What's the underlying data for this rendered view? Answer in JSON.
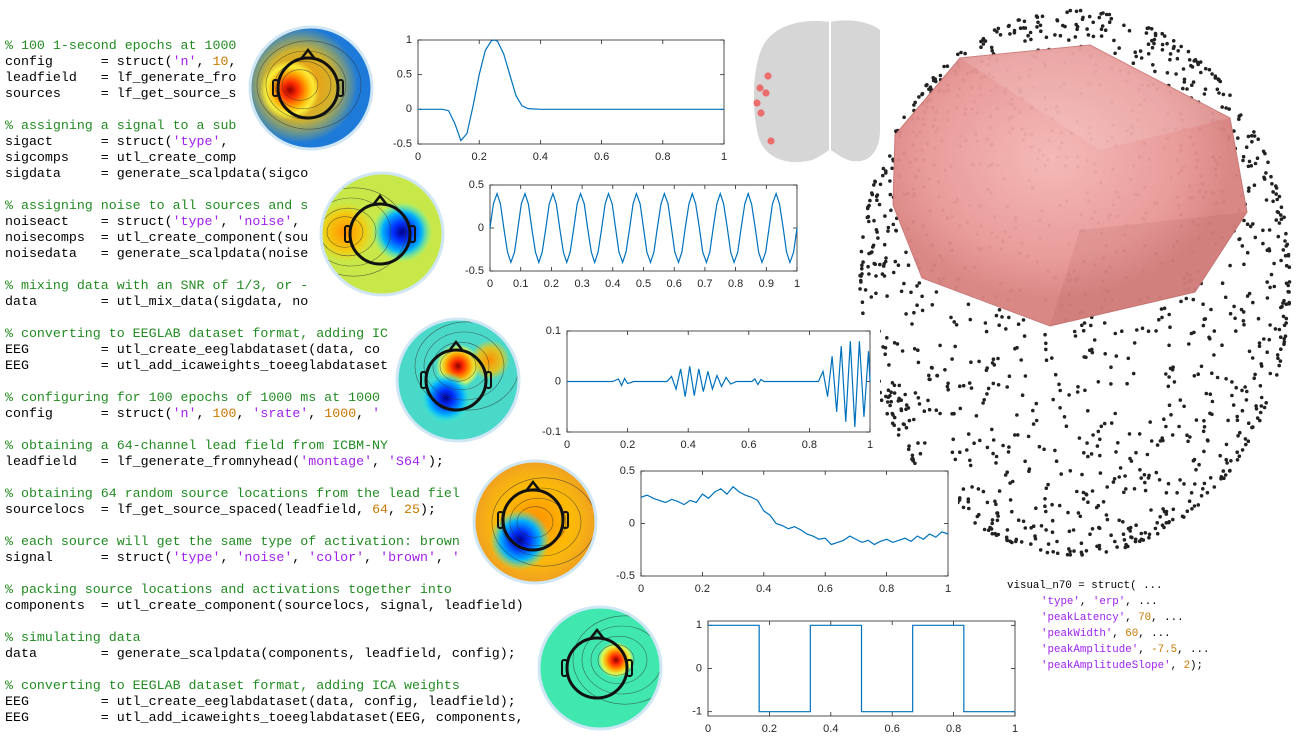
{
  "code": [
    [
      {
        "text": "% 100 1-second epochs at 1000",
        "color": "#228b22"
      }
    ],
    [
      {
        "text": "config      = struct(",
        "color": "#000000"
      },
      {
        "text": "'n'",
        "color": "#a020f0"
      },
      {
        "text": ", ",
        "color": "#000000"
      },
      {
        "text": "10",
        "color": "#c87800"
      },
      {
        "text": ",",
        "color": "#000000"
      }
    ],
    [
      {
        "text": "leadfield   = lf_generate_fro",
        "color": "#000000"
      }
    ],
    [
      {
        "text": "sources     = lf_get_source_s",
        "color": "#000000"
      }
    ],
    [],
    [
      {
        "text": "% assigning a signal to a sub",
        "color": "#228b22"
      }
    ],
    [
      {
        "text": "sigact      = struct(",
        "color": "#000000"
      },
      {
        "text": "'type'",
        "color": "#a020f0"
      },
      {
        "text": ",",
        "color": "#000000"
      }
    ],
    [
      {
        "text": "sigcomps    = utl_create_comp",
        "color": "#000000"
      }
    ],
    [
      {
        "text": "sigdata     = generate_scalpdata(sigco",
        "color": "#000000"
      }
    ],
    [],
    [
      {
        "text": "% assigning noise to all sources and s",
        "color": "#228b22"
      }
    ],
    [
      {
        "text": "noiseact    = struct(",
        "color": "#000000"
      },
      {
        "text": "'type'",
        "color": "#a020f0"
      },
      {
        "text": ", ",
        "color": "#000000"
      },
      {
        "text": "'noise'",
        "color": "#a020f0"
      },
      {
        "text": ",",
        "color": "#000000"
      }
    ],
    [
      {
        "text": "noisecomps  = utl_create_component(sou",
        "color": "#000000"
      }
    ],
    [
      {
        "text": "noisedata   = generate_scalpdata(noise",
        "color": "#000000"
      }
    ],
    [],
    [
      {
        "text": "% mixing data with an SNR of 1/3, or -",
        "color": "#228b22"
      }
    ],
    [
      {
        "text": "data        = utl_mix_data(sigdata, no",
        "color": "#000000"
      }
    ],
    [],
    [
      {
        "text": "% converting to EEGLAB dataset format, adding IC",
        "color": "#228b22"
      }
    ],
    [
      {
        "text": "EEG         = utl_create_eeglabdataset(data, co",
        "color": "#000000"
      }
    ],
    [
      {
        "text": "EEG         = utl_add_icaweights_toeeglabdataset",
        "color": "#000000"
      }
    ],
    [],
    [
      {
        "text": "% configuring for 100 epochs of 1000 ms at 1000",
        "color": "#228b22"
      }
    ],
    [
      {
        "text": "config      = struct(",
        "color": "#000000"
      },
      {
        "text": "'n'",
        "color": "#a020f0"
      },
      {
        "text": ", ",
        "color": "#000000"
      },
      {
        "text": "100",
        "color": "#c87800"
      },
      {
        "text": ", ",
        "color": "#000000"
      },
      {
        "text": "'srate'",
        "color": "#a020f0"
      },
      {
        "text": ", ",
        "color": "#000000"
      },
      {
        "text": "1000",
        "color": "#c87800"
      },
      {
        "text": ", ",
        "color": "#000000"
      },
      {
        "text": "'",
        "color": "#a020f0"
      }
    ],
    [],
    [
      {
        "text": "% obtaining a 64-channel lead field from ICBM-NY",
        "color": "#228b22"
      }
    ],
    [
      {
        "text": "leadfield   = lf_generate_fromnyhead(",
        "color": "#000000"
      },
      {
        "text": "'montage'",
        "color": "#a020f0"
      },
      {
        "text": ", ",
        "color": "#000000"
      },
      {
        "text": "'S64'",
        "color": "#a020f0"
      },
      {
        "text": ");",
        "color": "#000000"
      }
    ],
    [],
    [
      {
        "text": "% obtaining 64 random source locations from the lead fiel",
        "color": "#228b22"
      }
    ],
    [
      {
        "text": "sourcelocs  = lf_get_source_spaced(leadfield, ",
        "color": "#000000"
      },
      {
        "text": "64",
        "color": "#c87800"
      },
      {
        "text": ", ",
        "color": "#000000"
      },
      {
        "text": "25",
        "color": "#c87800"
      },
      {
        "text": ");",
        "color": "#000000"
      }
    ],
    [],
    [
      {
        "text": "% each source will get the same type of activation: brown",
        "color": "#228b22"
      }
    ],
    [
      {
        "text": "signal      = struct(",
        "color": "#000000"
      },
      {
        "text": "'type'",
        "color": "#a020f0"
      },
      {
        "text": ", ",
        "color": "#000000"
      },
      {
        "text": "'noise'",
        "color": "#a020f0"
      },
      {
        "text": ", ",
        "color": "#000000"
      },
      {
        "text": "'color'",
        "color": "#a020f0"
      },
      {
        "text": ", ",
        "color": "#000000"
      },
      {
        "text": "'brown'",
        "color": "#a020f0"
      },
      {
        "text": ", ",
        "color": "#000000"
      },
      {
        "text": "'",
        "color": "#a020f0"
      }
    ],
    [],
    [
      {
        "text": "% packing source locations and activations together into",
        "color": "#228b22"
      }
    ],
    [
      {
        "text": "components  = utl_create_component(sourcelocs, signal, leadfield)",
        "color": "#000000"
      }
    ],
    [],
    [
      {
        "text": "% simulating data",
        "color": "#228b22"
      }
    ],
    [
      {
        "text": "data        = generate_scalpdata(components, leadfield, config);",
        "color": "#000000"
      }
    ],
    [],
    [
      {
        "text": "% converting to EEGLAB dataset format, adding ICA weights",
        "color": "#228b22"
      }
    ],
    [
      {
        "text": "EEG         = utl_create_eeglabdataset(data, config, leadfield);",
        "color": "#000000"
      }
    ],
    [
      {
        "text": "EEG         = utl_add_icaweights_toeeglabdataset(EEG, components,",
        "color": "#000000"
      }
    ]
  ],
  "snippet": [
    [
      {
        "text": "visual_n70 = struct( ...",
        "color": "#000000"
      }
    ],
    [
      {
        "text": "'type'",
        "color": "#a020f0"
      },
      {
        "text": ", ",
        "color": "#000000"
      },
      {
        "text": "'erp'",
        "color": "#a020f0"
      },
      {
        "text": ", ...",
        "color": "#000000"
      }
    ],
    [
      {
        "text": "'peakLatency'",
        "color": "#a020f0"
      },
      {
        "text": ", ",
        "color": "#000000"
      },
      {
        "text": "70",
        "color": "#c87800"
      },
      {
        "text": ", ...",
        "color": "#000000"
      }
    ],
    [
      {
        "text": "'peakWidth'",
        "color": "#a020f0"
      },
      {
        "text": ", ",
        "color": "#000000"
      },
      {
        "text": "60",
        "color": "#c87800"
      },
      {
        "text": ", ...",
        "color": "#000000"
      }
    ],
    [
      {
        "text": "'peakAmplitude'",
        "color": "#a020f0"
      },
      {
        "text": ", ",
        "color": "#000000"
      },
      {
        "text": "-7.5",
        "color": "#c87800"
      },
      {
        "text": ", ...",
        "color": "#000000"
      }
    ],
    [
      {
        "text": "'peakAmplitudeSlope'",
        "color": "#a020f0"
      },
      {
        "text": ", ",
        "color": "#000000"
      },
      {
        "text": "2",
        "color": "#c87800"
      },
      {
        "text": ");",
        "color": "#000000"
      }
    ]
  ],
  "chart_data": [
    {
      "type": "line",
      "color": "#0072bd",
      "x": [
        0,
        0.05,
        0.08,
        0.1,
        0.12,
        0.14,
        0.16,
        0.18,
        0.2,
        0.22,
        0.24,
        0.25,
        0.26,
        0.28,
        0.3,
        0.32,
        0.34,
        0.36,
        0.4,
        0.6,
        0.8,
        1
      ],
      "values": [
        0,
        0,
        0,
        -0.02,
        -0.2,
        -0.45,
        -0.35,
        0.05,
        0.5,
        0.85,
        0.99,
        1,
        0.98,
        0.8,
        0.5,
        0.2,
        0.05,
        0.01,
        0,
        0,
        0,
        0
      ],
      "xlim": [
        0,
        1
      ],
      "xticks": [
        0,
        0.2,
        0.4,
        0.6,
        0.8,
        1
      ],
      "ylim": [
        -0.5,
        1
      ],
      "yticks": [
        -0.5,
        0,
        0.5,
        1
      ]
    },
    {
      "type": "line",
      "color": "#0072bd",
      "x": [
        0,
        0.011,
        0.023,
        0.034,
        0.045,
        0.057,
        0.068,
        0.08,
        0.091,
        0.102,
        0.114,
        0.125,
        0.136,
        0.148,
        0.159,
        0.17,
        0.182,
        0.193,
        0.205,
        0.216,
        0.227,
        0.239,
        0.25,
        0.261,
        0.273,
        0.284,
        0.295,
        0.307,
        0.318,
        0.33,
        0.341,
        0.352,
        0.364,
        0.375,
        0.386,
        0.398,
        0.409,
        0.42,
        0.432,
        0.443,
        0.455,
        0.466,
        0.477,
        0.489,
        0.5,
        0.511,
        0.523,
        0.534,
        0.545,
        0.557,
        0.568,
        0.58,
        0.591,
        0.602,
        0.614,
        0.625,
        0.636,
        0.648,
        0.659,
        0.67,
        0.682,
        0.693,
        0.705,
        0.716,
        0.727,
        0.739,
        0.75,
        0.761,
        0.773,
        0.784,
        0.795,
        0.807,
        0.818,
        0.83,
        0.841,
        0.852,
        0.864,
        0.875,
        0.886,
        0.898,
        0.909,
        0.92,
        0.932,
        0.943,
        0.955,
        0.966,
        0.977,
        0.989,
        1
      ],
      "values": [
        0,
        0.28,
        0.4,
        0.28,
        0,
        -0.28,
        -0.4,
        -0.28,
        0,
        0.28,
        0.4,
        0.28,
        0,
        -0.28,
        -0.4,
        -0.28,
        0,
        0.28,
        0.4,
        0.28,
        0,
        -0.28,
        -0.4,
        -0.28,
        0,
        0.28,
        0.4,
        0.28,
        0,
        -0.28,
        -0.4,
        -0.28,
        0,
        0.28,
        0.4,
        0.28,
        0,
        -0.28,
        -0.4,
        -0.28,
        0,
        0.28,
        0.4,
        0.28,
        0,
        -0.28,
        -0.4,
        -0.28,
        0,
        0.28,
        0.4,
        0.28,
        0,
        -0.28,
        -0.4,
        -0.28,
        0,
        0.28,
        0.4,
        0.28,
        0,
        -0.28,
        -0.4,
        -0.28,
        0,
        0.28,
        0.4,
        0.28,
        0,
        -0.28,
        -0.4,
        -0.28,
        0,
        0.28,
        0.4,
        0.28,
        0,
        -0.28,
        -0.4,
        -0.28,
        0,
        0.28,
        0.4,
        0.28,
        0,
        -0.28,
        -0.4,
        -0.28,
        0
      ],
      "xlim": [
        0,
        1
      ],
      "xticks": [
        0,
        0.1,
        0.2,
        0.3,
        0.4,
        0.5,
        0.6,
        0.7,
        0.8,
        0.9,
        1
      ],
      "ylim": [
        -0.5,
        0.5
      ],
      "yticks": [
        -0.5,
        0,
        0.5
      ]
    },
    {
      "type": "line",
      "color": "#0072bd",
      "x": [
        0,
        0.15,
        0.17,
        0.18,
        0.19,
        0.2,
        0.22,
        0.33,
        0.345,
        0.36,
        0.375,
        0.39,
        0.405,
        0.42,
        0.435,
        0.45,
        0.465,
        0.48,
        0.495,
        0.51,
        0.525,
        0.54,
        0.56,
        0.61,
        0.62,
        0.63,
        0.64,
        0.65,
        0.83,
        0.845,
        0.86,
        0.875,
        0.89,
        0.905,
        0.92,
        0.935,
        0.95,
        0.965,
        0.98,
        0.995,
        1
      ],
      "values": [
        0,
        0,
        0.005,
        -0.008,
        0.006,
        -0.004,
        0,
        0,
        0.01,
        -0.015,
        0.025,
        -0.03,
        0.03,
        -0.028,
        0.025,
        -0.02,
        0.02,
        -0.015,
        0.012,
        -0.01,
        0.008,
        -0.005,
        0,
        0,
        0.005,
        -0.006,
        0.004,
        0,
        0,
        0.02,
        -0.03,
        0.05,
        -0.06,
        0.07,
        -0.08,
        0.08,
        -0.09,
        0.08,
        -0.07,
        0.06,
        0
      ],
      "xlim": [
        0,
        1
      ],
      "xticks": [
        0,
        0.2,
        0.4,
        0.6,
        0.8,
        1
      ],
      "ylim": [
        -0.1,
        0.1
      ],
      "yticks": [
        -0.1,
        0,
        0.1
      ]
    },
    {
      "type": "line",
      "color": "#0072bd",
      "x": [
        0,
        0.02,
        0.04,
        0.06,
        0.08,
        0.1,
        0.12,
        0.14,
        0.16,
        0.18,
        0.2,
        0.22,
        0.24,
        0.26,
        0.28,
        0.3,
        0.32,
        0.34,
        0.36,
        0.38,
        0.4,
        0.42,
        0.44,
        0.46,
        0.48,
        0.5,
        0.52,
        0.54,
        0.56,
        0.58,
        0.6,
        0.62,
        0.64,
        0.66,
        0.68,
        0.7,
        0.72,
        0.74,
        0.76,
        0.78,
        0.8,
        0.82,
        0.84,
        0.86,
        0.88,
        0.9,
        0.92,
        0.94,
        0.96,
        0.98,
        1
      ],
      "values": [
        0.25,
        0.27,
        0.24,
        0.22,
        0.2,
        0.23,
        0.21,
        0.18,
        0.22,
        0.2,
        0.28,
        0.24,
        0.3,
        0.33,
        0.28,
        0.35,
        0.3,
        0.27,
        0.25,
        0.22,
        0.12,
        0.08,
        0.0,
        -0.02,
        -0.05,
        -0.03,
        -0.06,
        -0.1,
        -0.12,
        -0.15,
        -0.14,
        -0.2,
        -0.18,
        -0.16,
        -0.12,
        -0.15,
        -0.18,
        -0.16,
        -0.2,
        -0.17,
        -0.15,
        -0.18,
        -0.16,
        -0.14,
        -0.17,
        -0.12,
        -0.15,
        -0.1,
        -0.13,
        -0.08,
        -0.1
      ],
      "xlim": [
        0,
        1
      ],
      "xticks": [
        0,
        0.2,
        0.4,
        0.6,
        0.8,
        1
      ],
      "ylim": [
        -0.5,
        0.5
      ],
      "yticks": [
        -0.5,
        0,
        0.5
      ]
    },
    {
      "type": "line",
      "color": "#0072bd",
      "x": [
        0,
        0.1667,
        0.1667,
        0.3333,
        0.3333,
        0.5,
        0.5,
        0.6667,
        0.6667,
        0.8333,
        0.8333,
        1
      ],
      "values": [
        1,
        1,
        -1,
        -1,
        1,
        1,
        -1,
        -1,
        1,
        1,
        -1,
        -1
      ],
      "xlim": [
        0,
        1
      ],
      "xticks": [
        0,
        0.2,
        0.4,
        0.6,
        0.8,
        1
      ],
      "ylim": [
        -1.1,
        1.1
      ],
      "yticks": [
        -1,
        0,
        1
      ]
    }
  ]
}
